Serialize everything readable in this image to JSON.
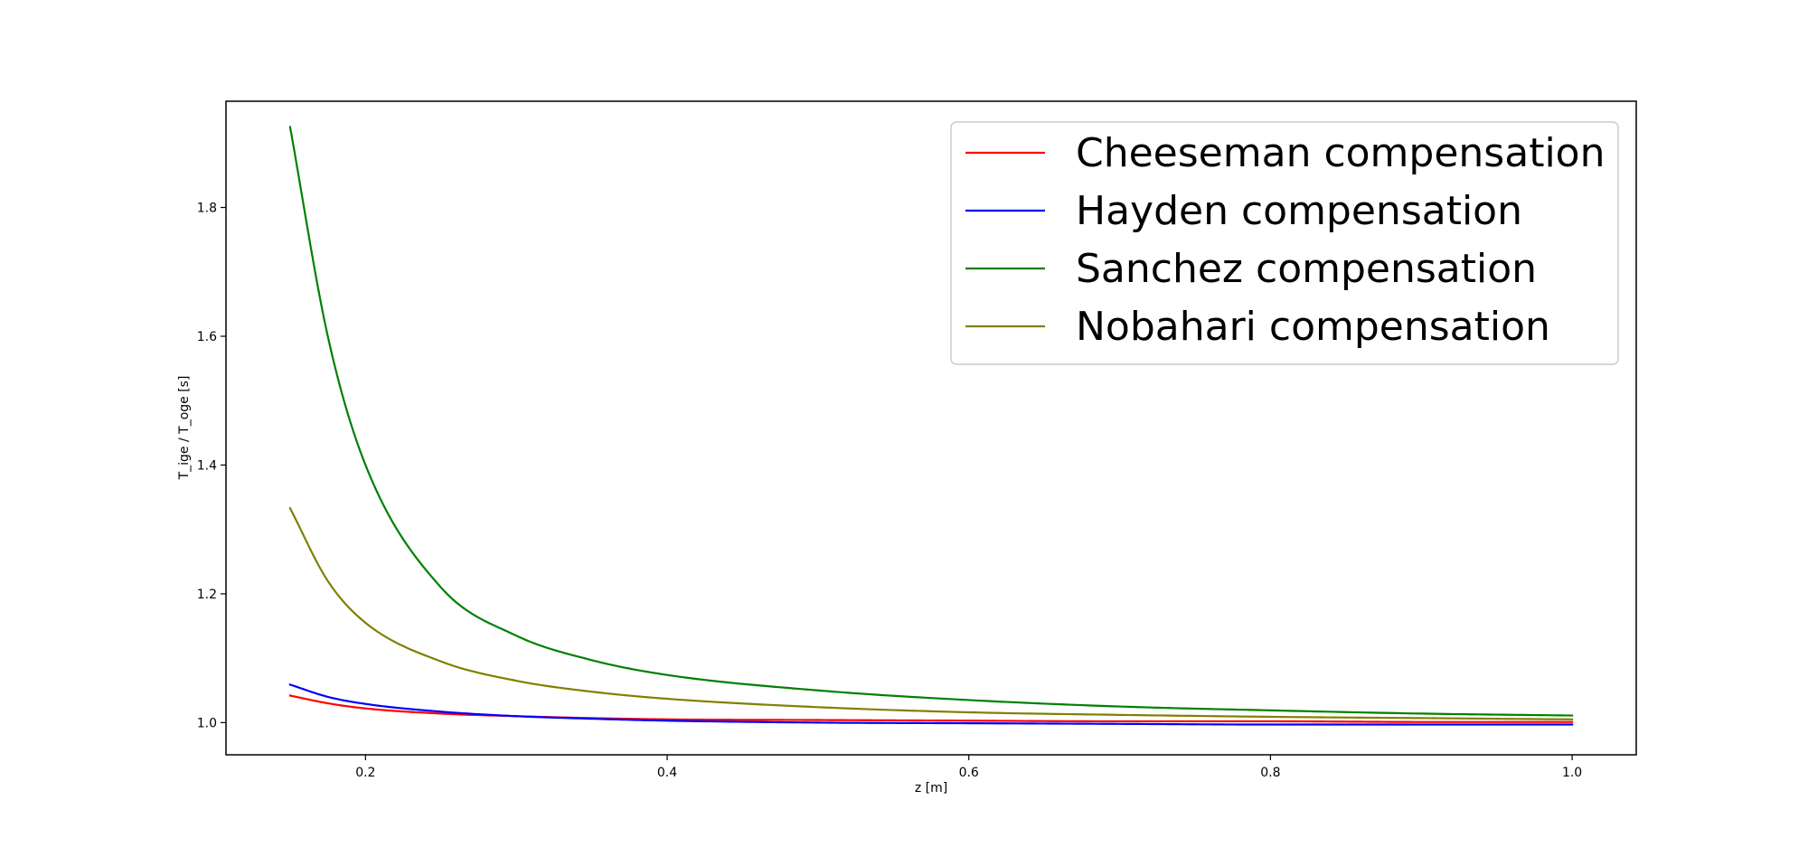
{
  "chart_data": {
    "type": "line",
    "title": "",
    "xlabel": "z [m]",
    "ylabel": "T_ige / T_oge [s]",
    "xlim": [
      0.1075,
      1.0425
    ],
    "ylim": [
      0.95,
      1.965
    ],
    "xticks": [
      0.2,
      0.4,
      0.6,
      0.8,
      1.0
    ],
    "xtick_labels": [
      "0.2",
      "0.4",
      "0.6",
      "0.8",
      "1.0"
    ],
    "yticks": [
      1.0,
      1.2,
      1.4,
      1.6,
      1.8
    ],
    "ytick_labels": [
      "1.0",
      "1.2",
      "1.4",
      "1.6",
      "1.8"
    ],
    "grid": false,
    "legend_position": "top-right",
    "x": [
      0.15,
      0.175,
      0.2,
      0.25,
      0.3,
      0.35,
      0.4,
      0.5,
      0.6,
      0.7,
      0.8,
      0.9,
      1.0
    ],
    "series": [
      {
        "name": "Cheeseman compensation",
        "color": "#ff0000",
        "values": [
          1.042,
          1.03,
          1.022,
          1.014,
          1.01,
          1.007,
          1.005,
          1.004,
          1.003,
          1.002,
          1.002,
          1.001,
          1.001
        ]
      },
      {
        "name": "Hayden compensation",
        "color": "#0000ff",
        "values": [
          1.059,
          1.04,
          1.029,
          1.017,
          1.01,
          1.006,
          1.003,
          1.0,
          0.999,
          0.998,
          0.997,
          0.997,
          0.997
        ]
      },
      {
        "name": "Sanchez compensation",
        "color": "#008000",
        "values": [
          1.925,
          1.6,
          1.4,
          1.21,
          1.135,
          1.097,
          1.074,
          1.05,
          1.035,
          1.025,
          1.019,
          1.014,
          1.011
        ]
      },
      {
        "name": "Nobahari compensation",
        "color": "#808000",
        "values": [
          1.333,
          1.22,
          1.155,
          1.095,
          1.065,
          1.048,
          1.037,
          1.024,
          1.016,
          1.012,
          1.009,
          1.007,
          1.005
        ]
      }
    ]
  }
}
